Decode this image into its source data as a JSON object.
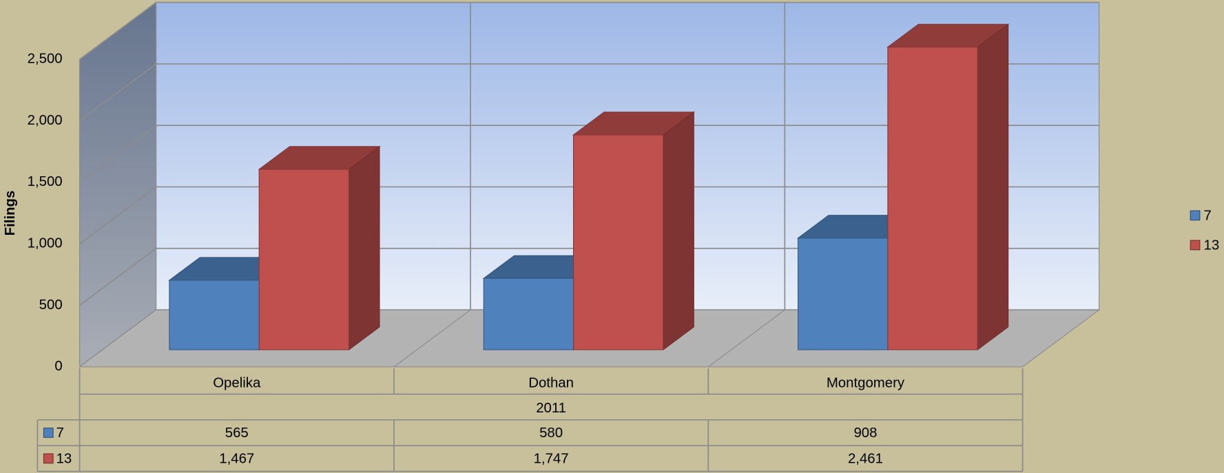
{
  "chart_data": {
    "type": "bar3d",
    "y_axis_label": "Filings",
    "categories": [
      "Opelika",
      "Dothan",
      "Montgomery"
    ],
    "group_label": "2011",
    "series": [
      {
        "name": "7",
        "color": "#4f81bd",
        "values": [
          565,
          580,
          908
        ]
      },
      {
        "name": "13",
        "color": "#c0504d",
        "values": [
          1467,
          1747,
          2461
        ],
        "value_labels": [
          "1,467",
          "1,747",
          "2,461"
        ]
      }
    ],
    "ylim": [
      0,
      2500
    ],
    "yticks": [
      0,
      500,
      {
        "value": 1000,
        "label": "1,000"
      },
      {
        "value": 1500,
        "label": "1,500"
      },
      {
        "value": 2000,
        "label": "2,000"
      },
      {
        "value": 2500,
        "label": "2,500"
      }
    ],
    "grid": true,
    "legend": "right",
    "data_table": true
  }
}
